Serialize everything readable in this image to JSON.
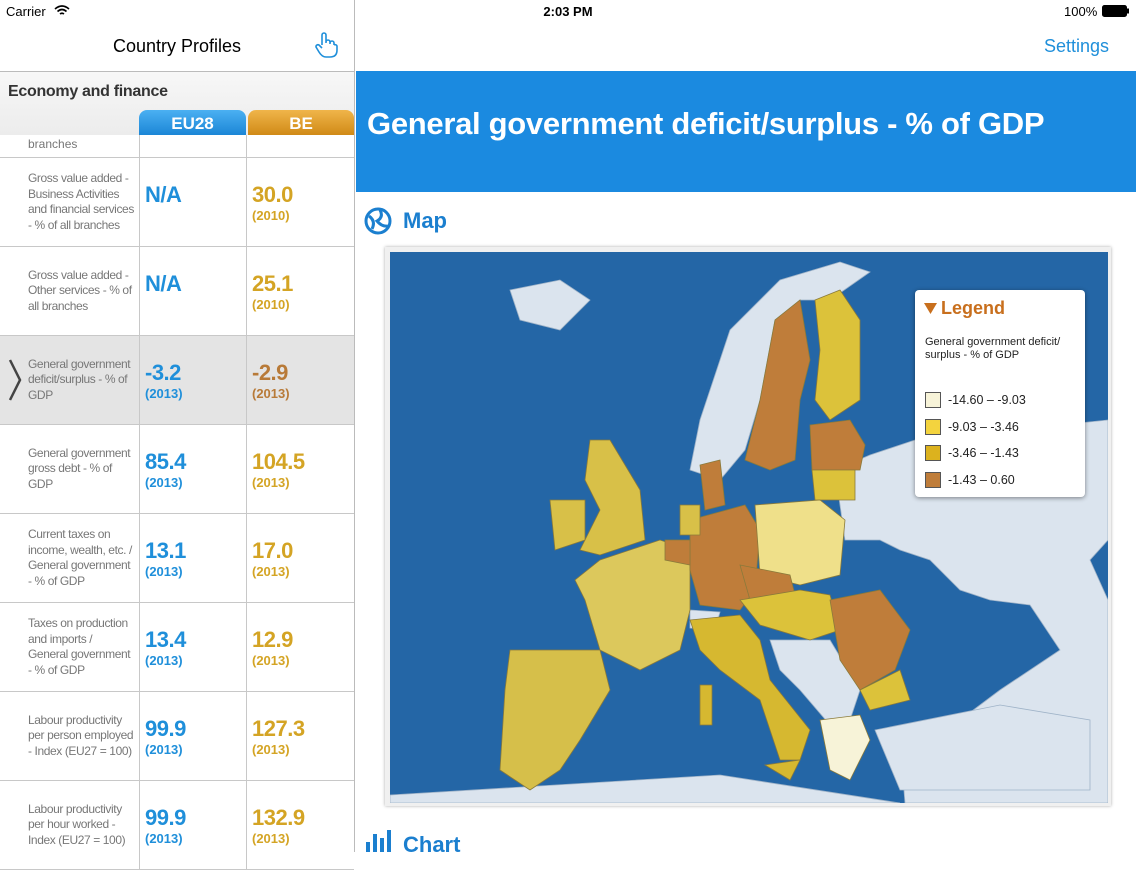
{
  "status": {
    "carrier": "Carrier",
    "time": "2:03 PM",
    "battery": "100%"
  },
  "sidebar": {
    "title": "Country Profiles",
    "section": "Economy and finance",
    "columns": [
      "EU28",
      "BE"
    ],
    "partial_row": {
      "label": "branches"
    },
    "rows": [
      {
        "label": "Gross value added - Business Activities and financial services - % of all branches",
        "eu28": {
          "value": "N/A"
        },
        "be": {
          "value": "30.0",
          "year": "(2010)"
        }
      },
      {
        "label": "Gross value added - Other services - % of all branches",
        "eu28": {
          "value": "N/A"
        },
        "be": {
          "value": "25.1",
          "year": "(2010)"
        }
      },
      {
        "label": "General government deficit/surplus - % of GDP",
        "selected": true,
        "eu28": {
          "value": "-3.2",
          "year": "(2013)"
        },
        "be": {
          "value": "-2.9",
          "year": "(2013)",
          "color": "#b87a38"
        }
      },
      {
        "label": "General government gross debt - % of GDP",
        "eu28": {
          "value": "85.4",
          "year": "(2013)"
        },
        "be": {
          "value": "104.5",
          "year": "(2013)"
        }
      },
      {
        "label": "Current taxes on income, wealth, etc. / General government - % of GDP",
        "eu28": {
          "value": "13.1",
          "year": "(2013)"
        },
        "be": {
          "value": "17.0",
          "year": "(2013)"
        }
      },
      {
        "label": "Taxes on production and imports / General government - % of GDP",
        "eu28": {
          "value": "13.4",
          "year": "(2013)"
        },
        "be": {
          "value": "12.9",
          "year": "(2013)"
        }
      },
      {
        "label": "Labour productivity per person employed - Index (EU27 = 100)",
        "eu28": {
          "value": "99.9",
          "year": "(2013)"
        },
        "be": {
          "value": "127.3",
          "year": "(2013)"
        }
      },
      {
        "label": "Labour productivity per hour worked - Index (EU27 = 100)",
        "eu28": {
          "value": "99.9",
          "year": "(2013)"
        },
        "be": {
          "value": "132.9",
          "year": "(2013)"
        }
      }
    ]
  },
  "main": {
    "settings": "Settings",
    "title": "General government deficit/surplus - % of GDP",
    "map_heading": "Map",
    "chart_heading": "Chart",
    "legend": {
      "title": "Legend",
      "subtitle": "General government deficit/ surplus - % of GDP",
      "items": [
        {
          "label": "-14.60 – -9.03",
          "color": "#f7f3d8"
        },
        {
          "label": "-9.03 – -3.46",
          "color": "#f3d33e"
        },
        {
          "label": "-3.46 – -1.43",
          "color": "#dcb21e"
        },
        {
          "label": "-1.43 – 0.60",
          "color": "#bf7d3a"
        }
      ]
    }
  }
}
